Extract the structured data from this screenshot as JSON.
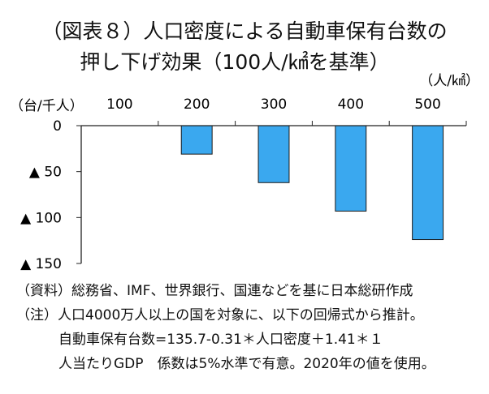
{
  "title_line1": "（図表８）人口密度による自動車保有台数の",
  "title_line2": "押し下げ効果（100人/㎢を基準）",
  "chart_data": {
    "type": "bar",
    "categories": [
      "100",
      "200",
      "300",
      "400",
      "500"
    ],
    "values": [
      0,
      -31,
      -62,
      -93,
      -124
    ],
    "ylim": [
      -150,
      0
    ],
    "yticks": [
      0,
      -50,
      -100,
      -150
    ],
    "ytick_labels": [
      "0",
      "▲ 50",
      "▲ 100",
      "▲ 150"
    ],
    "xlabel": "（人/㎢）",
    "ylabel": "（台/千人）",
    "xaxis_position": "top",
    "grid": false,
    "bar_color": "#3aa8ef"
  },
  "notes": {
    "source": "（資料）総務省、IMF、世界銀行、国連などを基に日本総研作成",
    "note_line1": "（注）人口4000万人以上の国を対象に、以下の回帰式から推計。",
    "note_line2": "自動車保有台数=135.7-0.31＊人口密度＋1.41＊１",
    "note_line3": "人当たりGDP　係数は5%水準で有意。2020年の値を使用。"
  }
}
